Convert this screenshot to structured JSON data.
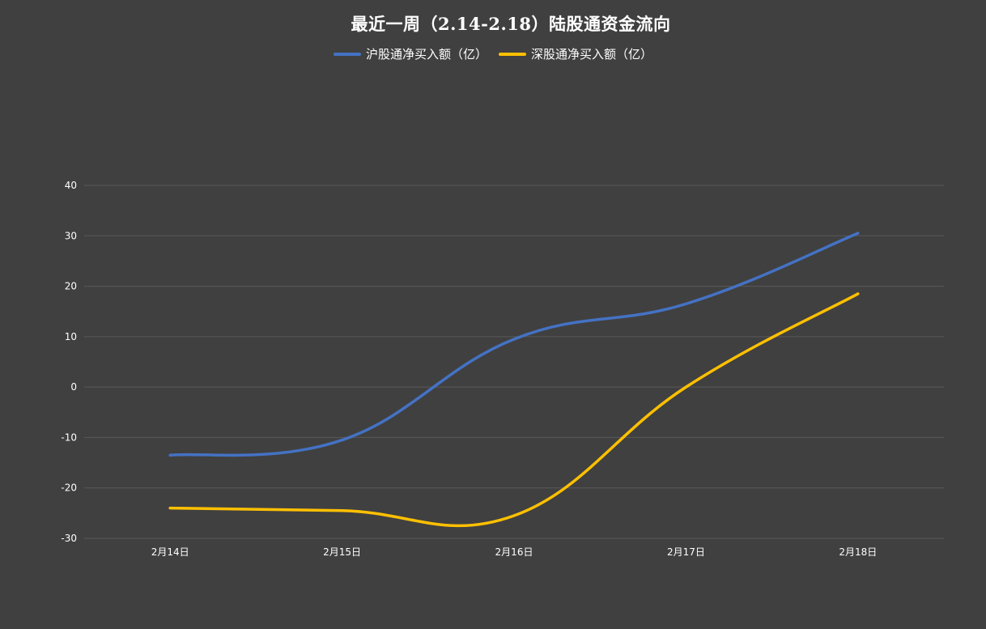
{
  "chart_data": {
    "type": "line",
    "title": "最近一周（2.14-2.18）陆股通资金流向",
    "xlabel": "",
    "ylabel": "",
    "categories": [
      "2月14日",
      "2月15日",
      "2月16日",
      "2月17日",
      "2月18日"
    ],
    "series": [
      {
        "name": "沪股通净买入额（亿）",
        "values": [
          -13.5,
          -10.5,
          9.5,
          16.5,
          30.5
        ],
        "color": "#4472c4"
      },
      {
        "name": "深股通净买入额（亿）",
        "values": [
          -24.0,
          -24.5,
          -25.5,
          0.0,
          18.5
        ],
        "color": "#ffc000"
      }
    ],
    "ylim": [
      -30,
      40
    ],
    "yticks": [
      -30,
      -20,
      -10,
      0,
      10,
      20,
      30,
      40
    ],
    "grid": true,
    "legend": "top",
    "smooth": true
  }
}
